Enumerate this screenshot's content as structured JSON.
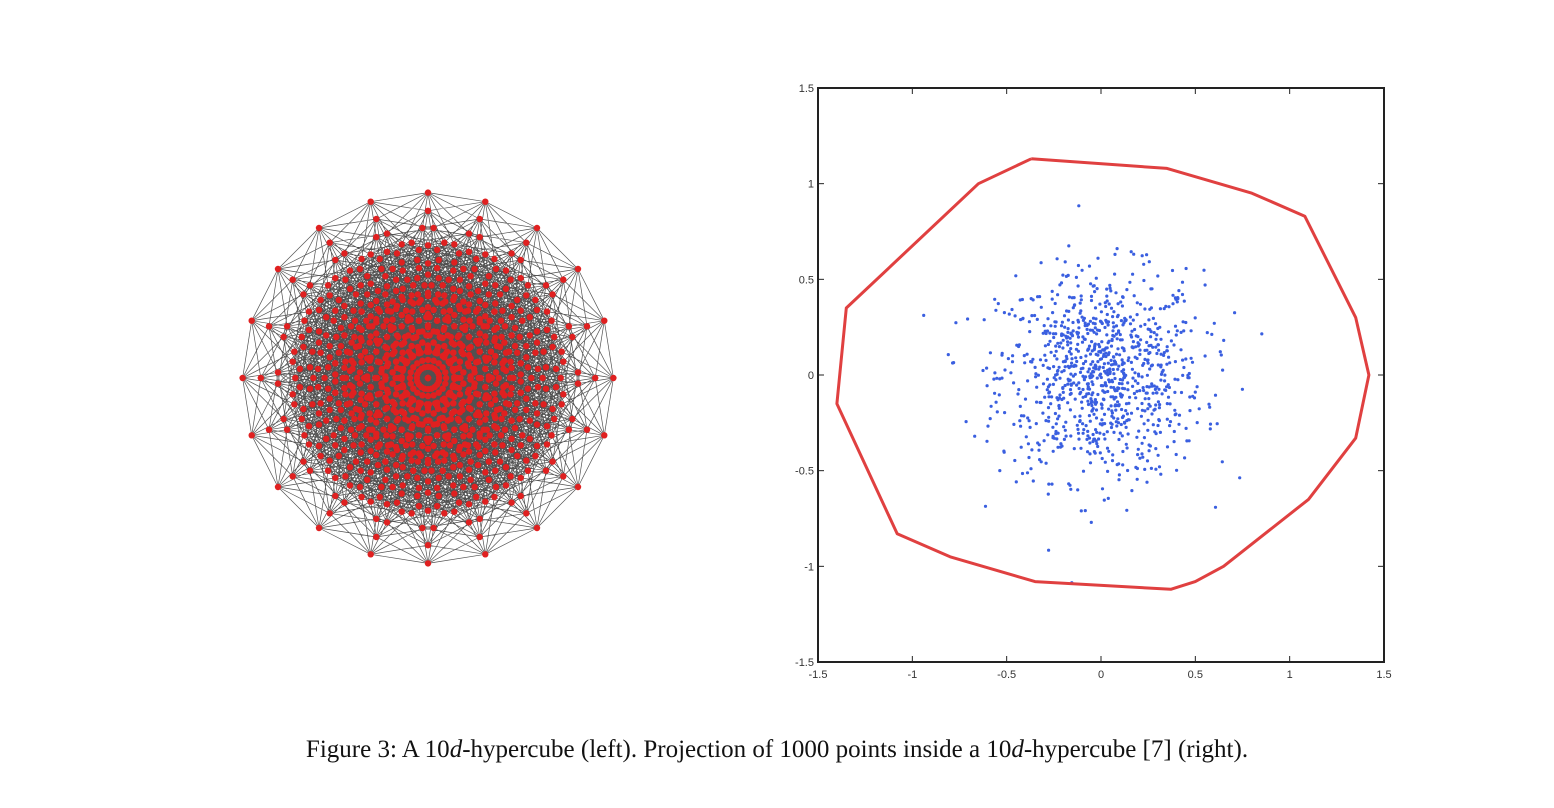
{
  "caption": {
    "prefix": "Figure 3: A 10",
    "d1": "d",
    "mid": "-hypercube (left). Projection of 1000 points inside a 10",
    "d2": "d",
    "suffix": "-hypercube [7] (right)."
  },
  "colors": {
    "hypercube_vertex": "#e02020",
    "hypercube_edge": "#333333",
    "hull": "#e04040",
    "points": "#3a5fe0",
    "axis": "#222222"
  },
  "chart_data": [
    {
      "type": "diagram",
      "description_visible": "",
      "dimension": 10,
      "vertex_count_shown": 1024
    },
    {
      "type": "scatter",
      "title": "",
      "xlabel": "",
      "ylabel": "",
      "xlim": [
        -1.5,
        1.5
      ],
      "ylim": [
        -1.5,
        1.5
      ],
      "x_ticks": [
        "-1.5",
        "-1",
        "-0.5",
        "0",
        "0.5",
        "1",
        "1.5"
      ],
      "y_ticks": [
        "1.5",
        "1",
        "0.5",
        "0",
        "-0.5",
        "-1",
        "-1.5"
      ],
      "grid": false,
      "point_count": 1000,
      "point_spread_sd": 0.27,
      "hull": {
        "x": [
          -0.37,
          0.35,
          0.8,
          1.08,
          1.35,
          1.42,
          1.35,
          1.1,
          0.65,
          0.5,
          0.37,
          -0.35,
          -0.8,
          -1.08,
          -1.4,
          -1.35,
          -0.65,
          -0.37
        ],
        "y": [
          1.13,
          1.08,
          0.95,
          0.83,
          0.3,
          0.0,
          -0.33,
          -0.65,
          -1.0,
          -1.08,
          -1.12,
          -1.08,
          -0.95,
          -0.83,
          -0.15,
          0.35,
          1.0,
          1.13
        ]
      }
    }
  ]
}
